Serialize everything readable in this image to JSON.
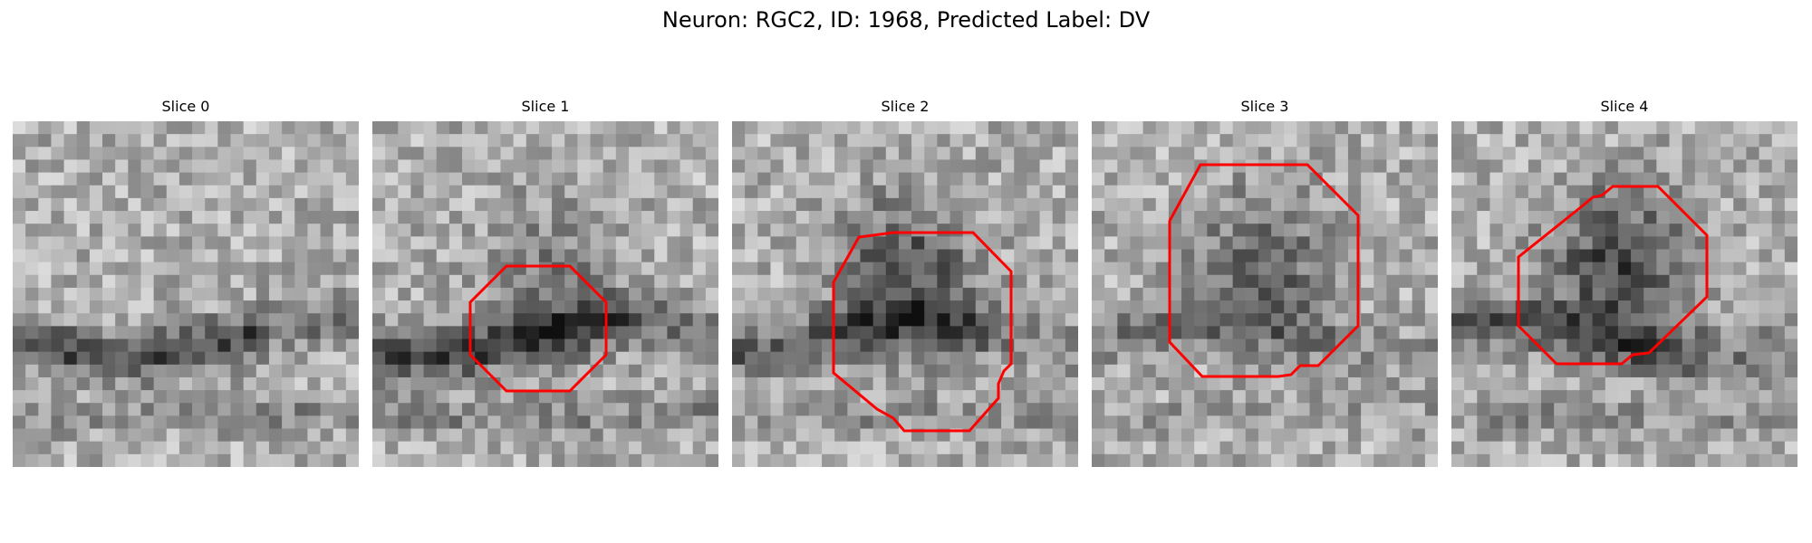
{
  "figure": {
    "title": "Neuron: RGC2, ID: 1968, Predicted Label: DV",
    "contour_color": "#ff0000"
  },
  "slices": [
    {
      "title": "Slice 0",
      "has_contour": false,
      "blob": [
        0.45,
        0.35,
        0.0
      ],
      "band": 0.9
    },
    {
      "title": "Slice 1",
      "has_contour": true,
      "blob": [
        0.52,
        0.45,
        0.55
      ],
      "band": 1.0
    },
    {
      "title": "Slice 2",
      "has_contour": true,
      "blob": [
        0.5,
        0.45,
        1.0
      ],
      "band": 0.7
    },
    {
      "title": "Slice 3",
      "has_contour": true,
      "blob": [
        0.5,
        0.42,
        0.8
      ],
      "band": 0.5
    },
    {
      "title": "Slice 4",
      "has_contour": true,
      "blob": [
        0.48,
        0.42,
        1.1
      ],
      "band": 0.8
    }
  ]
}
